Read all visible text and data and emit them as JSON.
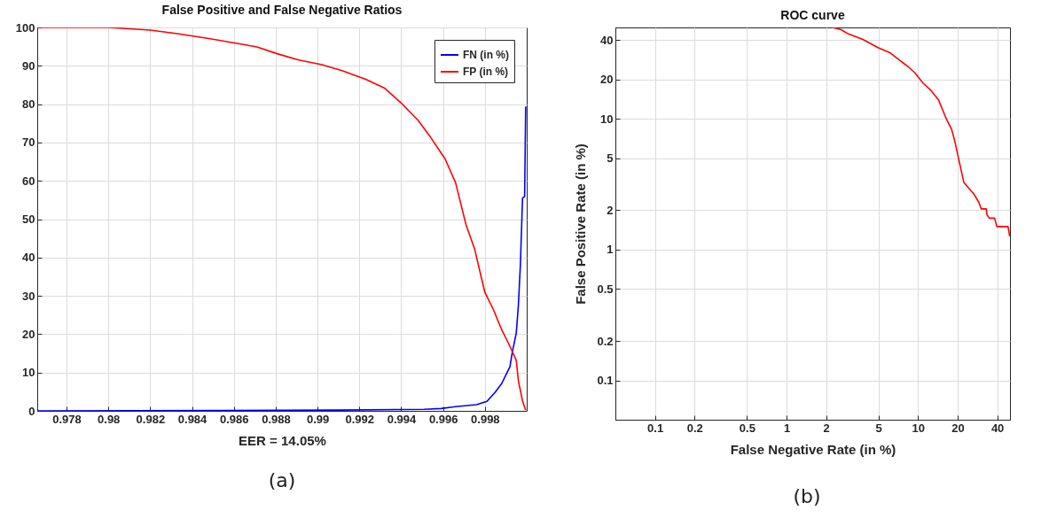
{
  "chart_data": [
    {
      "type": "line",
      "title": "False Positive and False Negative Ratios",
      "xlabel": "EER = 14.05%",
      "xlim": [
        0.9766,
        1
      ],
      "xticks": [
        0.978,
        0.98,
        0.982,
        0.984,
        0.986,
        0.988,
        0.99,
        0.992,
        0.994,
        0.996,
        0.998
      ],
      "ylim": [
        0,
        100
      ],
      "yticks": [
        0,
        10,
        20,
        30,
        40,
        50,
        60,
        70,
        80,
        90,
        100
      ],
      "grid": true,
      "legend": "top right",
      "annotations": [
        "(a)"
      ],
      "series": [
        {
          "name": "FN (in %)",
          "color": "#0000ff",
          "x": [
            0.9766,
            0.991,
            0.9951,
            0.9959,
            0.9966,
            0.9976,
            0.9981,
            0.9985,
            0.9988,
            0.9992,
            0.9993,
            0.9995,
            0.9996,
            0.9997,
            0.9998,
            0.9999,
            0.99995
          ],
          "values": [
            0,
            0.2,
            0.4,
            0.6,
            1.1,
            1.6,
            2.5,
            4.9,
            7.1,
            11.5,
            15,
            20.3,
            27.4,
            38.4,
            55.5,
            55.9,
            79.4
          ]
        },
        {
          "name": "FP (in %)",
          "color": "#ff0000",
          "x": [
            0.9766,
            0.98,
            0.982,
            0.9833,
            0.9848,
            0.9861,
            0.9871,
            0.9881,
            0.9891,
            0.9902,
            0.9912,
            0.9923,
            0.9932,
            0.994,
            0.9948,
            0.9954,
            0.9961,
            0.9966,
            0.9971,
            0.9975,
            0.998,
            0.9984,
            0.9988,
            0.9992,
            0.9995,
            0.9996,
            0.9998,
            0.99995
          ],
          "values": [
            100,
            100,
            99.3,
            98.4,
            97.1,
            95.9,
            94.9,
            93.1,
            91.5,
            90.3,
            88.7,
            86.5,
            84.2,
            80.3,
            75.8,
            71.4,
            65.7,
            59.5,
            48.5,
            42.4,
            30.9,
            26.5,
            21.2,
            16.8,
            13.2,
            7.9,
            2.6,
            0.2
          ]
        }
      ]
    },
    {
      "type": "line",
      "title": "ROC curve",
      "xlabel": "False Negative Rate (in %)",
      "ylabel": "False Positive Rate (in %)",
      "xlim": [
        0.05,
        50
      ],
      "xticks": [
        0.1,
        0.2,
        0.5,
        1,
        2,
        5,
        10,
        20,
        40
      ],
      "ylim": [
        0.05,
        50
      ],
      "yticks": [
        0.1,
        0.2,
        0.5,
        1,
        2,
        5,
        10,
        20,
        40
      ],
      "log": "xy",
      "grid": true,
      "annotations": [
        "(b)"
      ],
      "series": [
        {
          "color": "#ff0000",
          "x": [
            2.24,
            2.6,
            2.95,
            3.8,
            5.0,
            6.1,
            8.5,
            9.5,
            10.9,
            12.4,
            14.3,
            16.4,
            18,
            19,
            20.3,
            22.3,
            24.3,
            26.3,
            29,
            30.2,
            33,
            33.4,
            34.8,
            38.2,
            39.7,
            48.3,
            49.8
          ],
          "values": [
            50,
            48.1,
            44.6,
            40.5,
            34.9,
            32.1,
            24.8,
            22.4,
            18.8,
            16.7,
            14,
            10,
            8.3,
            6.8,
            5,
            3.26,
            2.95,
            2.7,
            2.3,
            2.05,
            2.05,
            1.85,
            1.74,
            1.74,
            1.5,
            1.5,
            1.26
          ]
        }
      ]
    }
  ]
}
